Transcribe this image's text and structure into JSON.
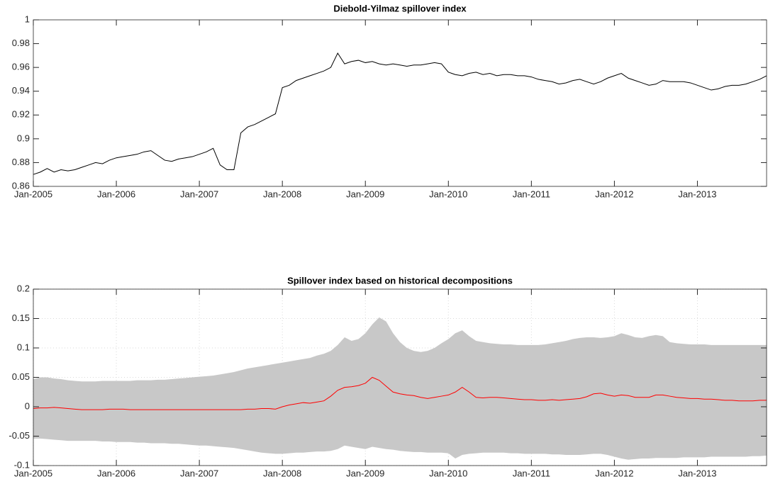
{
  "chart_data": [
    {
      "type": "line",
      "title": "Diebold-Yilmaz spillover index",
      "x": [
        "2005-01",
        "2005-02",
        "2005-03",
        "2005-04",
        "2005-05",
        "2005-06",
        "2005-07",
        "2005-08",
        "2005-09",
        "2005-10",
        "2005-11",
        "2005-12",
        "2006-01",
        "2006-02",
        "2006-03",
        "2006-04",
        "2006-05",
        "2006-06",
        "2006-07",
        "2006-08",
        "2006-09",
        "2006-10",
        "2006-11",
        "2006-12",
        "2007-01",
        "2007-02",
        "2007-03",
        "2007-04",
        "2007-05",
        "2007-06",
        "2007-07",
        "2007-08",
        "2007-09",
        "2007-10",
        "2007-11",
        "2007-12",
        "2008-01",
        "2008-02",
        "2008-03",
        "2008-04",
        "2008-05",
        "2008-06",
        "2008-07",
        "2008-08",
        "2008-09",
        "2008-10",
        "2008-11",
        "2008-12",
        "2009-01",
        "2009-02",
        "2009-03",
        "2009-04",
        "2009-05",
        "2009-06",
        "2009-07",
        "2009-08",
        "2009-09",
        "2009-10",
        "2009-11",
        "2009-12",
        "2010-01",
        "2010-02",
        "2010-03",
        "2010-04",
        "2010-05",
        "2010-06",
        "2010-07",
        "2010-08",
        "2010-09",
        "2010-10",
        "2010-11",
        "2010-12",
        "2011-01",
        "2011-02",
        "2011-03",
        "2011-04",
        "2011-05",
        "2011-06",
        "2011-07",
        "2011-08",
        "2011-09",
        "2011-10",
        "2011-11",
        "2011-12",
        "2012-01",
        "2012-02",
        "2012-03",
        "2012-04",
        "2012-05",
        "2012-06",
        "2012-07",
        "2012-08",
        "2012-09",
        "2012-10",
        "2012-11",
        "2012-12",
        "2013-01",
        "2013-02",
        "2013-03",
        "2013-04",
        "2013-05",
        "2013-06",
        "2013-07",
        "2013-08",
        "2013-09",
        "2013-10",
        "2013-11"
      ],
      "series": [
        {
          "color": "#000000",
          "values": [
            0.87,
            0.872,
            0.875,
            0.872,
            0.874,
            0.873,
            0.874,
            0.876,
            0.878,
            0.88,
            0.879,
            0.882,
            0.884,
            0.885,
            0.886,
            0.887,
            0.889,
            0.89,
            0.886,
            0.882,
            0.881,
            0.883,
            0.884,
            0.885,
            0.887,
            0.889,
            0.892,
            0.878,
            0.874,
            0.874,
            0.905,
            0.91,
            0.912,
            0.915,
            0.918,
            0.921,
            0.943,
            0.945,
            0.949,
            0.951,
            0.953,
            0.955,
            0.957,
            0.96,
            0.972,
            0.963,
            0.965,
            0.966,
            0.964,
            0.965,
            0.963,
            0.962,
            0.963,
            0.962,
            0.961,
            0.962,
            0.962,
            0.963,
            0.964,
            0.963,
            0.956,
            0.954,
            0.953,
            0.955,
            0.956,
            0.954,
            0.955,
            0.953,
            0.954,
            0.954,
            0.953,
            0.953,
            0.952,
            0.95,
            0.949,
            0.948,
            0.946,
            0.947,
            0.949,
            0.95,
            0.948,
            0.946,
            0.948,
            0.951,
            0.953,
            0.955,
            0.951,
            0.949,
            0.947,
            0.945,
            0.946,
            0.949,
            0.948,
            0.948,
            0.948,
            0.947,
            0.945,
            0.943,
            0.941,
            0.942,
            0.944,
            0.945,
            0.945,
            0.946,
            0.948,
            0.95,
            0.953
          ]
        }
      ],
      "xlim": [
        "2005-01",
        "2013-11"
      ],
      "xticks": [
        {
          "value": "2005-01",
          "label": "Jan-2005"
        },
        {
          "value": "2006-01",
          "label": "Jan-2006"
        },
        {
          "value": "2007-01",
          "label": "Jan-2007"
        },
        {
          "value": "2008-01",
          "label": "Jan-2008"
        },
        {
          "value": "2009-01",
          "label": "Jan-2009"
        },
        {
          "value": "2010-01",
          "label": "Jan-2010"
        },
        {
          "value": "2011-01",
          "label": "Jan-2011"
        },
        {
          "value": "2012-01",
          "label": "Jan-2012"
        },
        {
          "value": "2013-01",
          "label": "Jan-2013"
        }
      ],
      "ylim": [
        0.86,
        1
      ],
      "yticks": [
        0.86,
        0.88,
        0.9,
        0.92,
        0.94,
        0.96,
        0.98,
        1
      ],
      "grid": false
    },
    {
      "type": "line",
      "title": "Spillover index based on historical decompositions",
      "x": [
        "2005-01",
        "2005-02",
        "2005-03",
        "2005-04",
        "2005-05",
        "2005-06",
        "2005-07",
        "2005-08",
        "2005-09",
        "2005-10",
        "2005-11",
        "2005-12",
        "2006-01",
        "2006-02",
        "2006-03",
        "2006-04",
        "2006-05",
        "2006-06",
        "2006-07",
        "2006-08",
        "2006-09",
        "2006-10",
        "2006-11",
        "2006-12",
        "2007-01",
        "2007-02",
        "2007-03",
        "2007-04",
        "2007-05",
        "2007-06",
        "2007-07",
        "2007-08",
        "2007-09",
        "2007-10",
        "2007-11",
        "2007-12",
        "2008-01",
        "2008-02",
        "2008-03",
        "2008-04",
        "2008-05",
        "2008-06",
        "2008-07",
        "2008-08",
        "2008-09",
        "2008-10",
        "2008-11",
        "2008-12",
        "2009-01",
        "2009-02",
        "2009-03",
        "2009-04",
        "2009-05",
        "2009-06",
        "2009-07",
        "2009-08",
        "2009-09",
        "2009-10",
        "2009-11",
        "2009-12",
        "2010-01",
        "2010-02",
        "2010-03",
        "2010-04",
        "2010-05",
        "2010-06",
        "2010-07",
        "2010-08",
        "2010-09",
        "2010-10",
        "2010-11",
        "2010-12",
        "2011-01",
        "2011-02",
        "2011-03",
        "2011-04",
        "2011-05",
        "2011-06",
        "2011-07",
        "2011-08",
        "2011-09",
        "2011-10",
        "2011-11",
        "2011-12",
        "2012-01",
        "2012-02",
        "2012-03",
        "2012-04",
        "2012-05",
        "2012-06",
        "2012-07",
        "2012-08",
        "2012-09",
        "2012-10",
        "2012-11",
        "2012-12",
        "2013-01",
        "2013-02",
        "2013-03",
        "2013-04",
        "2013-05",
        "2013-06",
        "2013-07",
        "2013-08",
        "2013-09",
        "2013-10",
        "2013-11"
      ],
      "band": {
        "color": "#c8c8c8",
        "upper": [
          0.047,
          0.05,
          0.05,
          0.048,
          0.047,
          0.045,
          0.044,
          0.043,
          0.043,
          0.043,
          0.044,
          0.044,
          0.044,
          0.044,
          0.044,
          0.045,
          0.045,
          0.045,
          0.046,
          0.046,
          0.047,
          0.048,
          0.049,
          0.05,
          0.051,
          0.052,
          0.053,
          0.055,
          0.057,
          0.059,
          0.062,
          0.065,
          0.067,
          0.069,
          0.071,
          0.073,
          0.075,
          0.077,
          0.079,
          0.081,
          0.083,
          0.087,
          0.09,
          0.095,
          0.105,
          0.118,
          0.112,
          0.115,
          0.125,
          0.14,
          0.152,
          0.145,
          0.125,
          0.11,
          0.1,
          0.095,
          0.093,
          0.095,
          0.1,
          0.108,
          0.115,
          0.125,
          0.13,
          0.12,
          0.112,
          0.11,
          0.108,
          0.107,
          0.106,
          0.106,
          0.105,
          0.105,
          0.105,
          0.105,
          0.106,
          0.108,
          0.11,
          0.112,
          0.115,
          0.117,
          0.118,
          0.118,
          0.117,
          0.118,
          0.12,
          0.125,
          0.122,
          0.118,
          0.117,
          0.12,
          0.122,
          0.12,
          0.11,
          0.108,
          0.107,
          0.106,
          0.106,
          0.106,
          0.105,
          0.105,
          0.105,
          0.105,
          0.105,
          0.105,
          0.105,
          0.105,
          0.105
        ],
        "lower": [
          -0.054,
          -0.054,
          -0.055,
          -0.056,
          -0.057,
          -0.058,
          -0.058,
          -0.058,
          -0.058,
          -0.058,
          -0.059,
          -0.059,
          -0.06,
          -0.06,
          -0.06,
          -0.061,
          -0.061,
          -0.062,
          -0.062,
          -0.062,
          -0.063,
          -0.063,
          -0.064,
          -0.065,
          -0.066,
          -0.066,
          -0.067,
          -0.068,
          -0.069,
          -0.07,
          -0.072,
          -0.074,
          -0.076,
          -0.078,
          -0.079,
          -0.08,
          -0.08,
          -0.079,
          -0.078,
          -0.078,
          -0.077,
          -0.076,
          -0.076,
          -0.075,
          -0.072,
          -0.066,
          -0.068,
          -0.07,
          -0.072,
          -0.068,
          -0.07,
          -0.072,
          -0.073,
          -0.075,
          -0.076,
          -0.077,
          -0.077,
          -0.078,
          -0.078,
          -0.078,
          -0.079,
          -0.088,
          -0.082,
          -0.08,
          -0.079,
          -0.078,
          -0.078,
          -0.078,
          -0.078,
          -0.079,
          -0.079,
          -0.08,
          -0.08,
          -0.08,
          -0.08,
          -0.081,
          -0.081,
          -0.082,
          -0.082,
          -0.082,
          -0.081,
          -0.08,
          -0.08,
          -0.082,
          -0.085,
          -0.088,
          -0.09,
          -0.089,
          -0.088,
          -0.088,
          -0.087,
          -0.087,
          -0.087,
          -0.087,
          -0.086,
          -0.086,
          -0.086,
          -0.086,
          -0.085,
          -0.085,
          -0.085,
          -0.085,
          -0.085,
          -0.085,
          -0.084,
          -0.084,
          -0.083
        ]
      },
      "series": [
        {
          "color": "#ff0000",
          "values": [
            -0.003,
            -0.002,
            -0.002,
            -0.001,
            -0.002,
            -0.003,
            -0.004,
            -0.005,
            -0.005,
            -0.005,
            -0.005,
            -0.004,
            -0.004,
            -0.004,
            -0.005,
            -0.005,
            -0.005,
            -0.005,
            -0.005,
            -0.005,
            -0.005,
            -0.005,
            -0.005,
            -0.005,
            -0.005,
            -0.005,
            -0.005,
            -0.005,
            -0.005,
            -0.005,
            -0.005,
            -0.004,
            -0.004,
            -0.003,
            -0.003,
            -0.004,
            0.0,
            0.003,
            0.005,
            0.007,
            0.006,
            0.008,
            0.01,
            0.018,
            0.028,
            0.033,
            0.034,
            0.036,
            0.04,
            0.05,
            0.045,
            0.035,
            0.025,
            0.022,
            0.02,
            0.019,
            0.016,
            0.014,
            0.016,
            0.018,
            0.02,
            0.025,
            0.033,
            0.025,
            0.016,
            0.015,
            0.016,
            0.016,
            0.015,
            0.014,
            0.013,
            0.012,
            0.012,
            0.011,
            0.011,
            0.012,
            0.011,
            0.012,
            0.013,
            0.014,
            0.017,
            0.022,
            0.023,
            0.02,
            0.018,
            0.02,
            0.019,
            0.016,
            0.016,
            0.016,
            0.02,
            0.02,
            0.018,
            0.016,
            0.015,
            0.014,
            0.014,
            0.013,
            0.013,
            0.012,
            0.011,
            0.011,
            0.01,
            0.01,
            0.01,
            0.011,
            0.011
          ]
        }
      ],
      "xlim": [
        "2005-01",
        "2013-11"
      ],
      "xticks": [
        {
          "value": "2005-01",
          "label": "Jan-2005"
        },
        {
          "value": "2006-01",
          "label": "Jan-2006"
        },
        {
          "value": "2007-01",
          "label": "Jan-2007"
        },
        {
          "value": "2008-01",
          "label": "Jan-2008"
        },
        {
          "value": "2009-01",
          "label": "Jan-2009"
        },
        {
          "value": "2010-01",
          "label": "Jan-2010"
        },
        {
          "value": "2011-01",
          "label": "Jan-2011"
        },
        {
          "value": "2012-01",
          "label": "Jan-2012"
        },
        {
          "value": "2013-01",
          "label": "Jan-2013"
        }
      ],
      "ylim": [
        -0.1,
        0.2
      ],
      "yticks": [
        -0.1,
        -0.05,
        0,
        0.05,
        0.1,
        0.15,
        0.2
      ],
      "grid": true
    }
  ]
}
